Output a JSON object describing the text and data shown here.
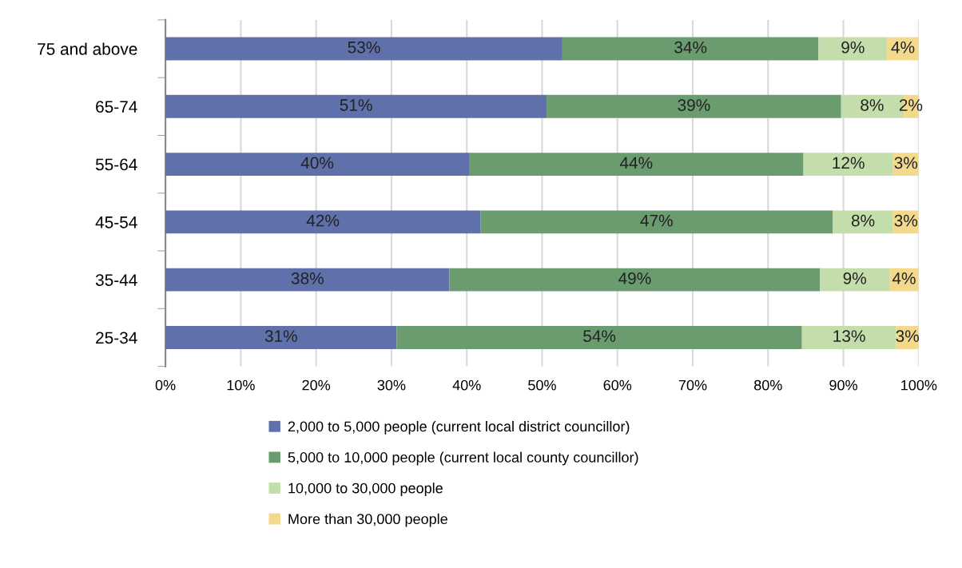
{
  "chart_data": {
    "type": "bar",
    "orientation": "horizontal",
    "stacked": true,
    "categories": [
      "75 and above",
      "65-74",
      "55-64",
      "45-54",
      "35-44",
      "25-34"
    ],
    "series": [
      {
        "name": "2,000 to 5,000 people (current local district councillor)",
        "color": "#6070ab",
        "values": [
          52.7,
          50.6,
          40.3,
          41.8,
          37.7,
          30.7
        ],
        "value_labels": [
          "53%",
          "51%",
          "40%",
          "42%",
          "38%",
          "31%"
        ]
      },
      {
        "name": "5,000 to 10,000 people (current local county councillor)",
        "color": "#6a9c70",
        "values": [
          34.0,
          39.1,
          44.4,
          46.8,
          49.2,
          53.8
        ],
        "value_labels": [
          "34%",
          "39%",
          "44%",
          "47%",
          "49%",
          "54%"
        ]
      },
      {
        "name": "10,000 to 30,000 people",
        "color": "#c3deab",
        "values": [
          9.1,
          8.2,
          11.9,
          8.0,
          9.2,
          12.5
        ],
        "value_labels": [
          "9%",
          "8%",
          "12%",
          "8%",
          "9%",
          "13%"
        ]
      },
      {
        "name": "More than 30,000 people",
        "color": "#f3d98c",
        "values": [
          4.2,
          2.1,
          3.4,
          3.4,
          3.9,
          3.0
        ],
        "value_labels": [
          "4%",
          "2%",
          "3%",
          "3%",
          "4%",
          "3%"
        ]
      }
    ],
    "xlim": [
      0,
      100
    ],
    "xticks": [
      {
        "value": 0,
        "label": "0%"
      },
      {
        "value": 10,
        "label": "10%"
      },
      {
        "value": 20,
        "label": "20%"
      },
      {
        "value": 30,
        "label": "30%"
      },
      {
        "value": 40,
        "label": "40%"
      },
      {
        "value": 50,
        "label": "50%"
      },
      {
        "value": 60,
        "label": "60%"
      },
      {
        "value": 70,
        "label": "70%"
      },
      {
        "value": 80,
        "label": "80%"
      },
      {
        "value": 90,
        "label": "90%"
      },
      {
        "value": 100,
        "label": "100%"
      }
    ],
    "grid": "x",
    "legend": "bottom"
  }
}
